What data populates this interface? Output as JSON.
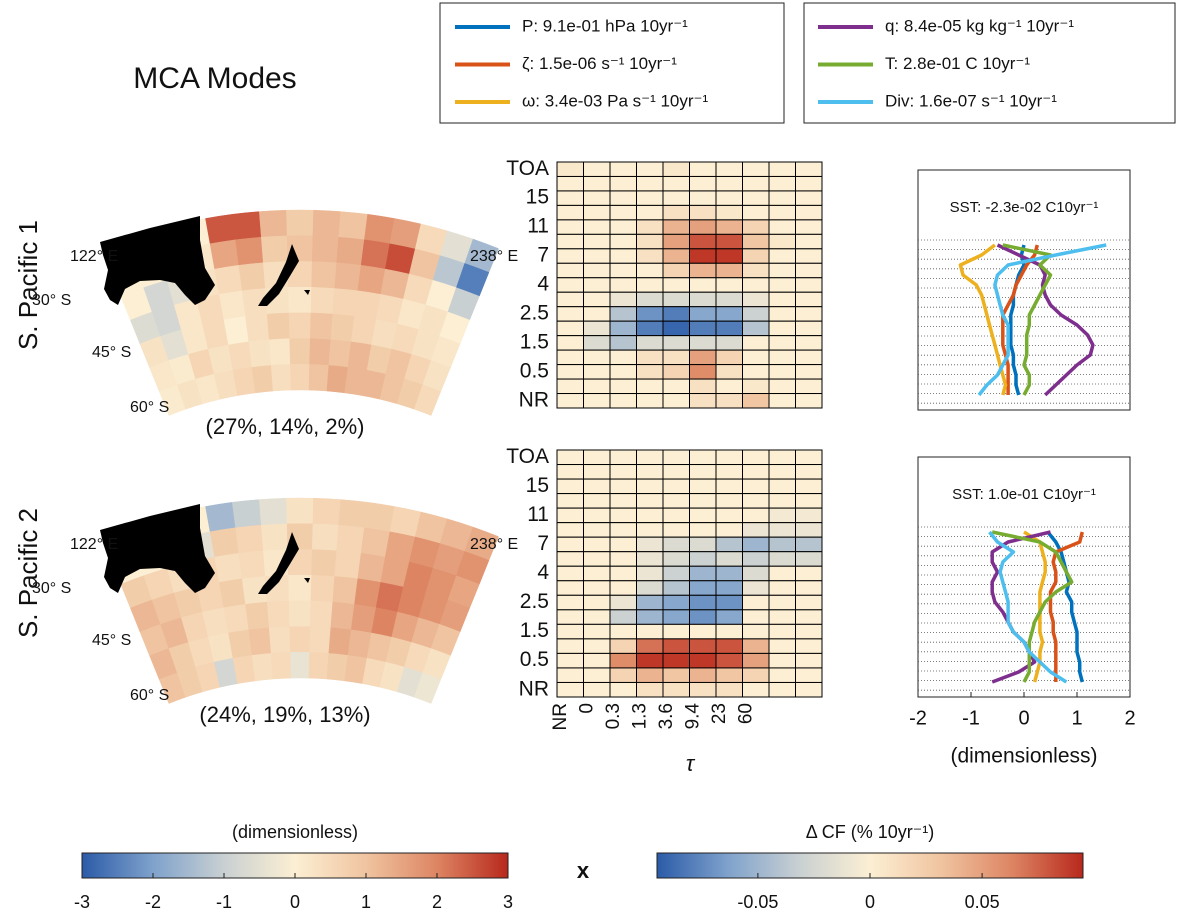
{
  "title": "MCA Modes",
  "colorbar_operator": "x",
  "chart_data": [
    {
      "type": "map",
      "row_label": "S. Pacific 1",
      "caption": "(27%, 14%, 2%)",
      "lon_labels": [
        "122° E",
        "238° E"
      ],
      "lat_labels": [
        "30° S",
        "45° S",
        "60° S"
      ],
      "values": [
        [
          0,
          0,
          0,
          0,
          2.5,
          2.5,
          1.2,
          0.8,
          1.2,
          1,
          1.8,
          1.6,
          0.5,
          -0.5,
          -1.5
        ],
        [
          0,
          0,
          0,
          0.2,
          1.5,
          1.8,
          0.8,
          1,
          1.2,
          1.4,
          2.2,
          2.6,
          1,
          -1.2,
          -2.5
        ],
        [
          0,
          -0.8,
          -0.5,
          0.3,
          0.5,
          0.8,
          0.4,
          0.6,
          1,
          1.2,
          1.5,
          1.2,
          0.5,
          0,
          -1
        ],
        [
          -0.6,
          -0.8,
          0.2,
          0.5,
          0.2,
          0.4,
          0.3,
          0.2,
          0.5,
          0.6,
          0.6,
          0.5,
          0.2,
          0.3,
          0
        ],
        [
          0.3,
          -0.5,
          0.2,
          0.5,
          0,
          0.4,
          0.8,
          0.6,
          1,
          0.8,
          0.6,
          0.4,
          0.5,
          0.3,
          0.2
        ],
        [
          0.2,
          0.1,
          0.6,
          0.3,
          0.5,
          0.3,
          0.2,
          0.8,
          1.2,
          1,
          1.2,
          0.8,
          1,
          0.6,
          0.3
        ],
        [
          0.1,
          0.3,
          0.2,
          0.4,
          0.6,
          0.8,
          0.4,
          0.6,
          1,
          1.4,
          1.2,
          1.2,
          1,
          0.8,
          0.5
        ]
      ]
    },
    {
      "type": "heatmap",
      "categories": [
        "TOA",
        null,
        "15",
        null,
        "11",
        null,
        "7",
        null,
        "4",
        null,
        "2.5",
        null,
        "1.5",
        null,
        "0.5",
        null,
        "NR"
      ],
      "values": [
        [
          0.005,
          0,
          0,
          0,
          0.005,
          0,
          0,
          0,
          0,
          0
        ],
        [
          0,
          0,
          0,
          0,
          0,
          0,
          0,
          0,
          0,
          0
        ],
        [
          0,
          0,
          0,
          0,
          0,
          0,
          0,
          0,
          0,
          0
        ],
        [
          0,
          0,
          0,
          0,
          0.01,
          0.01,
          0.005,
          0,
          0,
          0
        ],
        [
          0,
          0,
          0,
          0.01,
          0.04,
          0.05,
          0.04,
          0.02,
          0,
          0
        ],
        [
          0,
          0,
          0,
          0.01,
          0.05,
          0.08,
          0.08,
          0.03,
          0.005,
          0
        ],
        [
          0,
          0,
          0,
          0.01,
          0.04,
          0.09,
          0.09,
          0.02,
          0,
          0
        ],
        [
          0,
          0,
          0,
          0,
          0.02,
          0.04,
          0.04,
          0.01,
          0,
          0
        ],
        [
          0,
          0,
          0,
          0,
          0,
          0,
          0,
          0,
          0,
          0
        ],
        [
          0,
          0,
          -0.01,
          -0.02,
          -0.02,
          -0.02,
          -0.02,
          -0.01,
          0,
          0
        ],
        [
          0,
          0,
          -0.04,
          -0.07,
          -0.08,
          -0.06,
          -0.06,
          -0.03,
          0,
          0
        ],
        [
          0,
          -0.01,
          -0.05,
          -0.08,
          -0.09,
          -0.08,
          -0.08,
          -0.04,
          0,
          0
        ],
        [
          0,
          -0.02,
          -0.04,
          -0.02,
          -0.02,
          -0.02,
          -0.02,
          0,
          0,
          0
        ],
        [
          0,
          0,
          0,
          0.01,
          0.01,
          0.05,
          0.02,
          0,
          0,
          0
        ],
        [
          0,
          0,
          0,
          0.01,
          0.02,
          0.06,
          0.01,
          0,
          0,
          0
        ],
        [
          0,
          0,
          0,
          0,
          0,
          0.01,
          0,
          0.005,
          0,
          0
        ],
        [
          0,
          0,
          0,
          0,
          0,
          0.01,
          0.01,
          0.03,
          0,
          0
        ]
      ]
    },
    {
      "type": "line",
      "annotation": "SST: -2.3e-02 C10yr⁻¹",
      "xlim": [
        -2,
        2
      ],
      "series": [
        {
          "name": "P: 9.1e-01 hPa 10yr⁻¹",
          "color": "#0072bd",
          "values": [
            0,
            -0.05,
            0,
            -0.1,
            -0.15,
            -0.2,
            -0.2,
            -0.25,
            -0.25,
            -0.25,
            -0.25,
            -0.2,
            -0.2,
            -0.15,
            -0.15,
            -0.1
          ]
        },
        {
          "name": "ζ: 1.5e-06 s⁻¹ 10yr⁻¹",
          "color": "#d95319",
          "values": [
            0.25,
            0.2,
            0.05,
            -0.05,
            -0.15,
            -0.2,
            -0.3,
            -0.4,
            -0.4,
            -0.4,
            -0.4,
            -0.35,
            -0.3,
            -0.3,
            -0.3,
            -0.3
          ]
        },
        {
          "name": "ω: 3.4e-03 Pa s⁻¹ 10yr⁻¹",
          "color": "#edb120",
          "values": [
            -0.55,
            -0.8,
            -1.2,
            -1.15,
            -0.9,
            -0.8,
            -0.75,
            -0.7,
            -0.65,
            -0.6,
            -0.55,
            -0.5,
            -0.45,
            -0.4,
            -0.35,
            -0.4
          ]
        },
        {
          "name": "q: 8.4e-05  kg kg⁻¹ 10yr⁻¹",
          "color": "#7e2f8e",
          "values": [
            -0.5,
            -0.1,
            0.3,
            0.4,
            0.35,
            0.4,
            0.5,
            0.7,
            1,
            1.2,
            1.3,
            1.25,
            1,
            0.8,
            0.6,
            0.4
          ]
        },
        {
          "name": "T: 2.8e-01 C 10yr⁻¹",
          "color": "#77ac30",
          "values": [
            -0.4,
            0.5,
            0.3,
            0.5,
            0.4,
            0.3,
            0.2,
            0.1,
            0.1,
            0.05,
            0.05,
            0.05,
            0,
            0.1,
            0.1,
            0
          ]
        },
        {
          "name": "Div: 1.6e-07 s⁻¹ 10yr⁻¹",
          "color": "#4dbeee",
          "values": [
            1.55,
            0.6,
            -0.3,
            -0.5,
            -0.55,
            -0.5,
            -0.45,
            -0.4,
            -0.3,
            -0.3,
            -0.3,
            -0.3,
            -0.4,
            -0.5,
            -0.7,
            -0.85
          ]
        }
      ]
    },
    {
      "type": "map",
      "row_label": "S. Pacific 2",
      "caption": "(24%, 19%, 13%)",
      "lon_labels": [
        "122° E",
        "238° E"
      ],
      "lat_labels": [
        "30° S",
        "45° S",
        "60° S"
      ],
      "values": [
        [
          0,
          0,
          0,
          0,
          -1.5,
          -1,
          -0.5,
          0.3,
          0.6,
          0.8,
          0.8,
          0.6,
          1,
          1.2,
          1.4
        ],
        [
          0,
          0,
          0,
          -0.5,
          0.8,
          0.6,
          0.3,
          0.8,
          0.4,
          0.6,
          1,
          1.5,
          1.8,
          1.6,
          1.8
        ],
        [
          0.8,
          0.6,
          0.4,
          0.6,
          0.4,
          0.5,
          0.2,
          0.6,
          0.8,
          0.6,
          1.2,
          1.5,
          2,
          1.8,
          1.5
        ],
        [
          1.2,
          1,
          0.8,
          0.6,
          0.8,
          0.3,
          0.4,
          0.2,
          0.6,
          1,
          1.8,
          2.2,
          2,
          1.8,
          1.6
        ],
        [
          1,
          1.2,
          0.6,
          0.4,
          0.5,
          0.8,
          0.5,
          0.3,
          0.5,
          1.2,
          1.6,
          2,
          1.5,
          1.2,
          1
        ],
        [
          1.2,
          0.8,
          0.5,
          0.3,
          0.8,
          1,
          0.4,
          0.6,
          0.5,
          1.4,
          1.2,
          1,
          0.8,
          0.5,
          0.3
        ],
        [
          1,
          0.8,
          0.6,
          -0.8,
          0.6,
          0.4,
          0.5,
          -0.4,
          0.6,
          0.8,
          1,
          0.5,
          0.3,
          -0.5,
          -0.3
        ]
      ]
    },
    {
      "type": "heatmap",
      "categories": [
        "TOA",
        null,
        "15",
        null,
        "11",
        null,
        "7",
        null,
        "4",
        null,
        "2.5",
        null,
        "1.5",
        null,
        "0.5",
        null,
        "NR"
      ],
      "x_categories": [
        "NR",
        "0",
        "0.3",
        "1.3",
        "3.6",
        "9.4",
        "23",
        "60",
        null,
        null
      ],
      "xlabel": "τ",
      "values": [
        [
          0,
          0,
          0,
          0,
          0,
          0,
          0,
          0,
          0,
          0
        ],
        [
          0,
          0,
          0,
          0,
          0,
          0,
          0,
          0,
          0,
          0
        ],
        [
          0,
          0,
          0,
          0,
          0,
          0,
          0,
          0,
          0,
          0
        ],
        [
          0,
          0,
          0,
          0,
          0,
          0,
          0,
          0,
          0,
          0
        ],
        [
          0,
          0,
          0,
          0,
          0,
          0,
          0,
          0,
          -0.005,
          -0.005
        ],
        [
          0,
          0,
          0,
          0,
          0,
          0,
          0,
          -0.01,
          -0.01,
          -0.01
        ],
        [
          0,
          0,
          0,
          -0.01,
          -0.02,
          -0.02,
          -0.04,
          -0.05,
          -0.04,
          -0.04
        ],
        [
          0,
          0,
          0,
          -0.01,
          -0.02,
          -0.03,
          -0.02,
          -0.03,
          -0.02,
          -0.02
        ],
        [
          0,
          0,
          0,
          -0.01,
          -0.03,
          -0.05,
          -0.05,
          -0.02,
          0,
          0
        ],
        [
          0,
          0,
          0,
          -0.02,
          -0.04,
          -0.06,
          -0.06,
          -0.01,
          0,
          0
        ],
        [
          0,
          0,
          -0.01,
          -0.05,
          -0.06,
          -0.07,
          -0.07,
          0,
          0,
          0
        ],
        [
          0,
          0,
          -0.03,
          -0.05,
          -0.06,
          -0.07,
          -0.06,
          0,
          0,
          0
        ],
        [
          0,
          0,
          0,
          0,
          0,
          0,
          0,
          0,
          0,
          0
        ],
        [
          0,
          0,
          0.02,
          0.07,
          0.08,
          0.08,
          0.08,
          0.04,
          0,
          0
        ],
        [
          0,
          0,
          0.06,
          0.09,
          0.09,
          0.09,
          0.08,
          0.05,
          0,
          0
        ],
        [
          0,
          0,
          0.02,
          0.04,
          0.03,
          0.04,
          0.03,
          0.02,
          0,
          0
        ],
        [
          0,
          0,
          0,
          0.01,
          0.01,
          0.01,
          0.01,
          0,
          0,
          0
        ]
      ]
    },
    {
      "type": "line",
      "annotation": "SST: 1.0e-01 C10yr⁻¹",
      "xlim": [
        -2,
        2
      ],
      "xticks": [
        -2,
        -1,
        0,
        1,
        2
      ],
      "xlabel": "(dimensionless)",
      "series": [
        {
          "values": [
            0.45,
            0.6,
            0.7,
            0.75,
            0.8,
            0.85,
            0.8,
            0.9,
            0.9,
            0.95,
            1,
            1,
            1,
            1.05,
            1.05,
            1.1
          ]
        },
        {
          "values": [
            1.1,
            1.05,
            0.6,
            0.55,
            0.6,
            0.6,
            0.5,
            0.5,
            0.5,
            0.55,
            0.55,
            0.6,
            0.6,
            0.6,
            0.6,
            0.6
          ]
        },
        {
          "values": [
            0,
            0.3,
            0.35,
            0.4,
            0.4,
            0.35,
            0.3,
            0.3,
            0.3,
            0.3,
            0.3,
            0.35,
            0.3,
            0.3,
            0.25,
            0.2
          ]
        },
        {
          "values": [
            0.5,
            -0.3,
            -0.6,
            -0.6,
            -0.5,
            -0.6,
            -0.6,
            -0.55,
            -0.4,
            -0.3,
            -0.2,
            0,
            0.1,
            0.2,
            -0.1,
            -0.6
          ]
        },
        {
          "values": [
            -0.6,
            0.3,
            0.6,
            0.7,
            0.8,
            0.9,
            0.6,
            0.4,
            0.3,
            0.2,
            0.15,
            0.1,
            0.1,
            0.1,
            0.1,
            0
          ]
        },
        {
          "values": [
            -0.65,
            -0.5,
            -0.2,
            -0.4,
            -0.45,
            -0.4,
            -0.35,
            -0.3,
            -0.3,
            -0.3,
            -0.2,
            0,
            0.1,
            0.3,
            0.5,
            0.8
          ]
        }
      ]
    },
    {
      "type": "colorbar",
      "label": "(dimensionless)",
      "lim": [
        -3,
        3
      ],
      "ticks": [
        -3,
        -2,
        -1,
        0,
        1,
        2,
        3
      ],
      "colors": [
        "#2b5ba8",
        "#7fa2cc",
        "#c9d0d2",
        "#fcefd3",
        "#f0c4a0",
        "#dd8563",
        "#b8281c"
      ]
    },
    {
      "type": "colorbar",
      "label": "Δ CF (% 10yr⁻¹)",
      "lim": [
        -0.095,
        0.095
      ],
      "ticks": [
        -0.05,
        0,
        0.05
      ],
      "colors": [
        "#2b5ba8",
        "#7fa2cc",
        "#c9d0d2",
        "#fcefd3",
        "#f0c4a0",
        "#dd8563",
        "#b8281c"
      ]
    }
  ]
}
